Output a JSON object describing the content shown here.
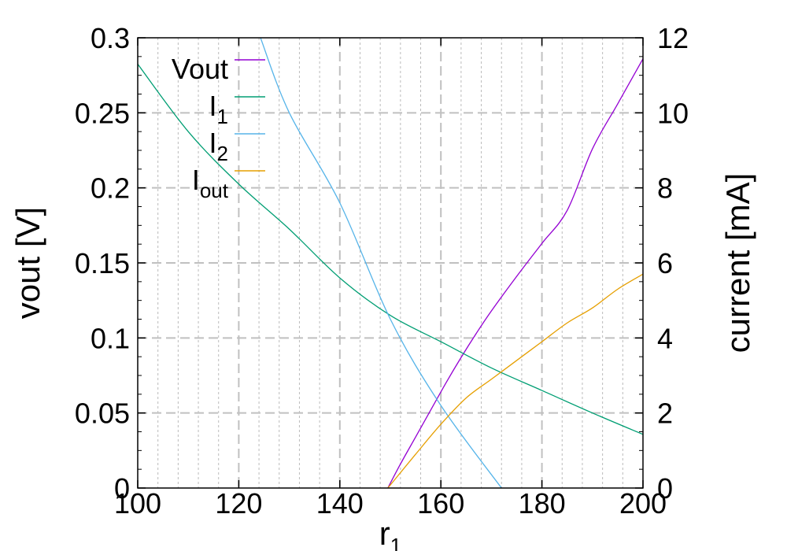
{
  "chart_data": {
    "type": "line",
    "xlabel": {
      "base": "r",
      "sub": "1"
    },
    "ylabel": "vout [V]",
    "y2label": "current [mA]",
    "xlim": [
      100,
      200
    ],
    "ylim": [
      0,
      0.3
    ],
    "y2lim": [
      0,
      12
    ],
    "xticks": [
      "100",
      "120",
      "140",
      "160",
      "180",
      "200"
    ],
    "yticks": [
      "0",
      "0.05",
      "0.1",
      "0.15",
      "0.2",
      "0.25",
      "0.3"
    ],
    "y2ticks": [
      "0",
      "2",
      "4",
      "6",
      "8",
      "10",
      "12"
    ],
    "grid": true,
    "legend_position": "top-left",
    "series": [
      {
        "name": "Vout",
        "axis": "left",
        "color": "#9400d3",
        "x": [
          149.5,
          152,
          155,
          158,
          161,
          164,
          167,
          170,
          175,
          180,
          185,
          190,
          195,
          200
        ],
        "y": [
          0,
          0.016,
          0.034,
          0.052,
          0.07,
          0.087,
          0.103,
          0.118,
          0.141,
          0.163,
          0.185,
          0.226,
          0.256,
          0.286
        ]
      },
      {
        "name": "I",
        "sub": "1",
        "axis": "right",
        "color": "#009e73",
        "x": [
          100,
          110,
          120,
          130,
          140,
          150,
          160,
          170,
          180,
          190,
          200
        ],
        "y": [
          11.3,
          9.5,
          8.1,
          6.9,
          5.6,
          4.6,
          3.9,
          3.2,
          2.6,
          2.0,
          1.43
        ]
      },
      {
        "name": "I",
        "sub": "2",
        "axis": "right",
        "color": "#56b4e9",
        "x": [
          124.3,
          130,
          140,
          150,
          160,
          172
        ],
        "y": [
          12,
          10.0,
          7.6,
          4.5,
          2.2,
          0
        ]
      },
      {
        "name": "I",
        "sub": "out",
        "axis": "right",
        "color": "#e69f00",
        "x": [
          149.5,
          155,
          160,
          165,
          170,
          175,
          180,
          185,
          190,
          195,
          200
        ],
        "y": [
          0,
          0.9,
          1.7,
          2.4,
          2.9,
          3.4,
          3.9,
          4.4,
          4.8,
          5.3,
          5.7
        ]
      }
    ]
  }
}
